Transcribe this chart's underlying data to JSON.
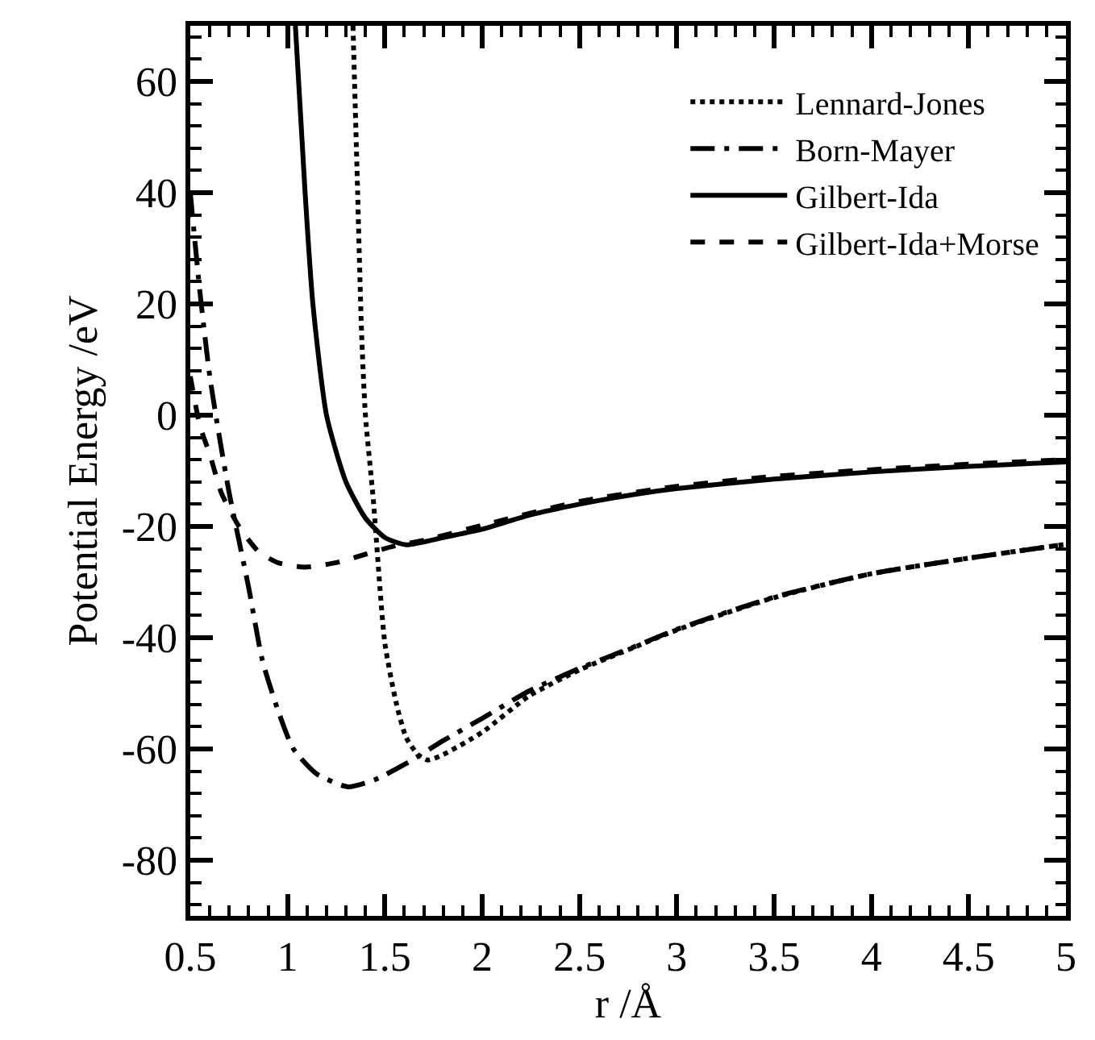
{
  "chart_data": {
    "type": "line",
    "xlabel": "r /Å",
    "ylabel": "Potential Energy /eV",
    "xlim": [
      0.5,
      5
    ],
    "xticks": [
      0.5,
      1,
      1.5,
      2,
      2.5,
      3,
      3.5,
      4,
      4.5,
      5
    ],
    "ylim": [
      -90,
      70
    ],
    "yticks": [
      -80,
      -60,
      -40,
      -20,
      0,
      20,
      40,
      60
    ],
    "legend": "top right",
    "marker": "none",
    "series": [
      {
        "name": "Lennard-Jones",
        "color": "#000000",
        "line_style": "dotted",
        "x": [
          1.336,
          1.36,
          1.38,
          1.4,
          1.44,
          1.5,
          1.56,
          1.61,
          1.67,
          1.72,
          1.8,
          2.0,
          2.24,
          2.5,
          2.79,
          3.0,
          3.5,
          4.0,
          4.5,
          5.0
        ],
        "values": [
          70,
          40,
          15,
          0,
          -15,
          -41,
          -52,
          -58,
          -61,
          -62,
          -61,
          -57,
          -50.5,
          -45.8,
          -41.6,
          -38.6,
          -32.8,
          -28.5,
          -25.7,
          -23.2
        ]
      },
      {
        "name": "Born-Mayer",
        "color": "#000000",
        "line_style": "dashdot",
        "x": [
          0.5,
          0.55,
          0.6,
          0.65,
          0.7,
          0.8,
          0.87,
          0.95,
          1.03,
          1.15,
          1.31,
          1.45,
          1.61,
          1.8,
          2.0,
          2.24,
          2.5,
          2.79,
          3.0,
          3.49,
          4.0,
          4.5,
          5.0
        ],
        "values": [
          40,
          22,
          7,
          -4,
          -14,
          -31,
          -44,
          -53,
          -60,
          -64.5,
          -66.8,
          -65.5,
          -62.6,
          -58.5,
          -54.5,
          -49.6,
          -45.5,
          -41.5,
          -38.5,
          -32.8,
          -28.5,
          -25.7,
          -23.2
        ]
      },
      {
        "name": "Gilbert-Ida",
        "color": "#000000",
        "line_style": "solid",
        "x": [
          1.04,
          1.09,
          1.13,
          1.2,
          1.3,
          1.4,
          1.5,
          1.61,
          1.8,
          2.0,
          2.24,
          2.5,
          2.79,
          3.0,
          3.5,
          4.0,
          4.5,
          5.0
        ],
        "values": [
          70,
          40,
          20,
          0,
          -12,
          -18.5,
          -22,
          -23.3,
          -22,
          -20.5,
          -18,
          -16,
          -14.2,
          -13.2,
          -11.5,
          -10.2,
          -9.2,
          -8.4
        ]
      },
      {
        "name": "Gilbert-Ida+Morse",
        "color": "#000000",
        "line_style": "dashed",
        "x": [
          0.5,
          0.55,
          0.6,
          0.66,
          0.75,
          0.85,
          0.95,
          1.09,
          1.25,
          1.4,
          1.55,
          1.7,
          2.0,
          2.5,
          3.0,
          3.5,
          4.0,
          4.5,
          5.0
        ],
        "values": [
          7,
          -2,
          -7,
          -14,
          -20,
          -24.5,
          -26.5,
          -27.3,
          -26.5,
          -25,
          -23.5,
          -22.5,
          -19.8,
          -15.5,
          -12.8,
          -11,
          -9.8,
          -8.8,
          -8
        ]
      }
    ]
  }
}
